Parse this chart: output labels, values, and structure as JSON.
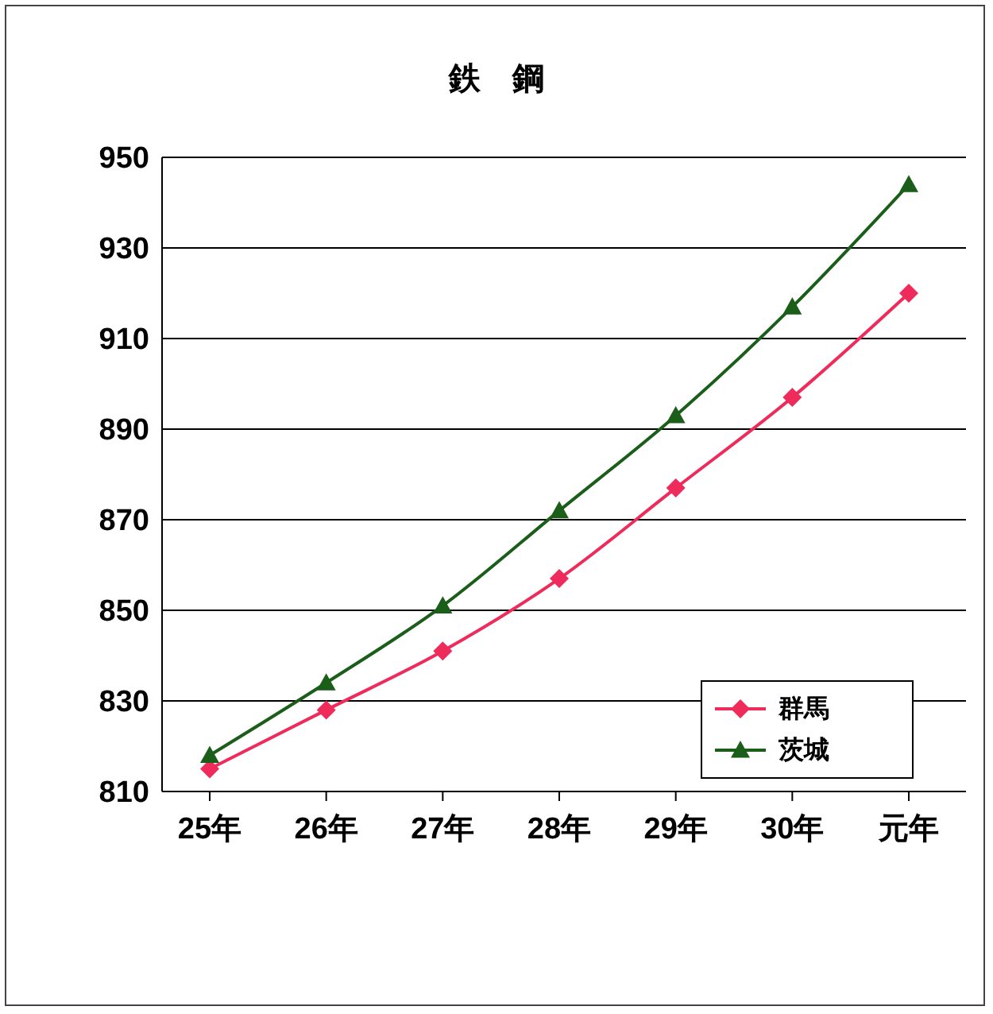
{
  "chart_data": {
    "type": "line",
    "title": "鉄　鋼",
    "categories": [
      "25年",
      "26年",
      "27年",
      "28年",
      "29年",
      "30年",
      "元年"
    ],
    "series": [
      {
        "name": "群馬",
        "color": "#ee2b5a",
        "marker": "diamond",
        "values": [
          815,
          828,
          841,
          857,
          877,
          897,
          920
        ]
      },
      {
        "name": "茨城",
        "color": "#1a5e1a",
        "marker": "triangle",
        "values": [
          818,
          834,
          851,
          872,
          893,
          917,
          944
        ]
      }
    ],
    "ylim": [
      810,
      950
    ],
    "yticks": [
      810,
      830,
      850,
      870,
      890,
      910,
      930,
      950
    ],
    "grid": "y",
    "legend": "bottom right",
    "line_style": "solid"
  }
}
